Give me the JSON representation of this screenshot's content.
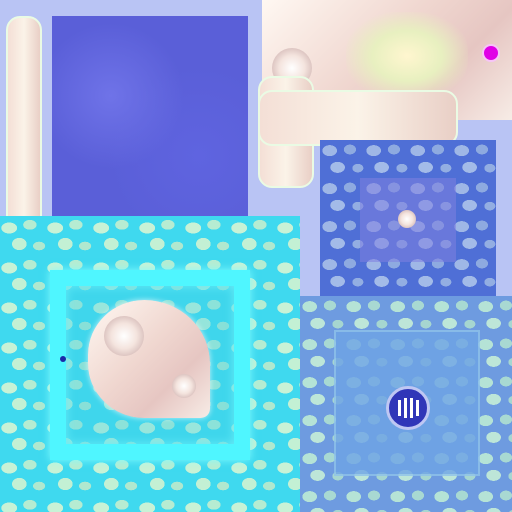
{
  "texture": {
    "accent_magenta": "#e000e6",
    "accent_cyan": "#4ff6ff",
    "accent_indigo": "#5a5fd8",
    "accent_pearl": "#f6e4dc"
  },
  "icons": {
    "dot": "magenta-dot-icon",
    "vent": "vent-grille-icon",
    "gem": "shell-gem-icon"
  }
}
